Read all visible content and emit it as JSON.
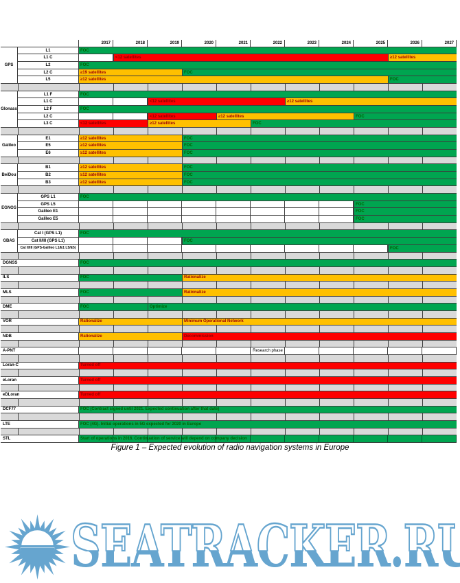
{
  "colors": {
    "green": "#00a550",
    "gold": "#ffc000",
    "red": "#fe0000",
    "sep_gray": "#d9d9d9",
    "border": "#3c3c3c",
    "text_on_green": "#006100",
    "text_on_gold": "#9c0006",
    "text_on_red": "#8b0000",
    "watermark_blue": "#66a5cf"
  },
  "watermark": {
    "text": "SEATRACKER.RU"
  },
  "chart_data": {
    "type": "gantt",
    "title": "Figure 1 – Expected evolution of radio navigation systems in Europe",
    "years": [
      "2017",
      "2018",
      "2019",
      "2020",
      "2021",
      "2022",
      "2023",
      "2024",
      "2025",
      "2026",
      "2027"
    ],
    "groups": [
      {
        "system": "GPS",
        "rows": [
          {
            "signal": "L1",
            "segments": [
              {
                "from_year": 2017,
                "to_year": 2027,
                "color": "green",
                "label": "FOC"
              }
            ]
          },
          {
            "signal": "L1 C",
            "segments": [
              {
                "from_year": 2017,
                "to_year": 2017,
                "color": "white",
                "label": ""
              },
              {
                "from_year": 2018,
                "to_year": 2025,
                "color": "red",
                "label": "<12 satellites"
              },
              {
                "from_year": 2026,
                "to_year": 2027,
                "color": "gold",
                "label": "≥12 satellites"
              }
            ]
          },
          {
            "signal": "L2",
            "segments": [
              {
                "from_year": 2017,
                "to_year": 2027,
                "color": "green",
                "label": "FOC"
              }
            ]
          },
          {
            "signal": "L2 C",
            "segments": [
              {
                "from_year": 2017,
                "to_year": 2019,
                "color": "gold",
                "label": "≥19 satellites"
              },
              {
                "from_year": 2020,
                "to_year": 2027,
                "color": "green",
                "label": "FOC"
              }
            ]
          },
          {
            "signal": "L5",
            "segments": [
              {
                "from_year": 2017,
                "to_year": 2025,
                "color": "gold",
                "label": "≥12 satellites"
              },
              {
                "from_year": 2026,
                "to_year": 2027,
                "color": "green",
                "label": "FOC"
              }
            ]
          }
        ]
      },
      {
        "system": "Glonass",
        "rows": [
          {
            "signal": "L1 F",
            "segments": [
              {
                "from_year": 2017,
                "to_year": 2027,
                "color": "green",
                "label": "FOC"
              }
            ]
          },
          {
            "signal": "L1 C",
            "segments": [
              {
                "from_year": 2017,
                "to_year": 2018,
                "color": "white",
                "label": ""
              },
              {
                "from_year": 2019,
                "to_year": 2022,
                "color": "red",
                "label": "<12 satellites"
              },
              {
                "from_year": 2023,
                "to_year": 2027,
                "color": "gold",
                "label": "≥12 satellites"
              }
            ]
          },
          {
            "signal": "L2 F",
            "segments": [
              {
                "from_year": 2017,
                "to_year": 2027,
                "color": "green",
                "label": "FOC"
              }
            ]
          },
          {
            "signal": "L2 C",
            "segments": [
              {
                "from_year": 2017,
                "to_year": 2018,
                "color": "white",
                "label": ""
              },
              {
                "from_year": 2019,
                "to_year": 2020,
                "color": "red",
                "label": "<12 satellites"
              },
              {
                "from_year": 2021,
                "to_year": 2024,
                "color": "gold",
                "label": "≥12 satellites"
              },
              {
                "from_year": 2025,
                "to_year": 2027,
                "color": "green",
                "label": "FOC"
              }
            ]
          },
          {
            "signal": "L3 C",
            "segments": [
              {
                "from_year": 2017,
                "to_year": 2018,
                "color": "red",
                "label": "<12 satellites"
              },
              {
                "from_year": 2019,
                "to_year": 2021,
                "color": "gold",
                "label": "≥12 satellites"
              },
              {
                "from_year": 2022,
                "to_year": 2027,
                "color": "green",
                "label": "FOC"
              }
            ]
          }
        ]
      },
      {
        "system": "Galileo",
        "rows": [
          {
            "signal": "E1",
            "segments": [
              {
                "from_year": 2017,
                "to_year": 2019,
                "color": "gold",
                "label": "≥12 satellites"
              },
              {
                "from_year": 2020,
                "to_year": 2027,
                "color": "green",
                "label": "FOC"
              }
            ]
          },
          {
            "signal": "E5",
            "segments": [
              {
                "from_year": 2017,
                "to_year": 2019,
                "color": "gold",
                "label": "≥12 satellites"
              },
              {
                "from_year": 2020,
                "to_year": 2027,
                "color": "green",
                "label": "FOC"
              }
            ]
          },
          {
            "signal": "E6",
            "segments": [
              {
                "from_year": 2017,
                "to_year": 2019,
                "color": "gold",
                "label": "≥12 satellites"
              },
              {
                "from_year": 2020,
                "to_year": 2027,
                "color": "green",
                "label": "FOC"
              }
            ]
          }
        ]
      },
      {
        "system": "BeiDou",
        "rows": [
          {
            "signal": "B1",
            "segments": [
              {
                "from_year": 2017,
                "to_year": 2019,
                "color": "gold",
                "label": "≥12 satellites"
              },
              {
                "from_year": 2020,
                "to_year": 2027,
                "color": "green",
                "label": "FOC"
              }
            ]
          },
          {
            "signal": "B2",
            "segments": [
              {
                "from_year": 2017,
                "to_year": 2019,
                "color": "gold",
                "label": "≥12 satellites"
              },
              {
                "from_year": 2020,
                "to_year": 2027,
                "color": "green",
                "label": "FOC"
              }
            ]
          },
          {
            "signal": "B3",
            "segments": [
              {
                "from_year": 2017,
                "to_year": 2019,
                "color": "gold",
                "label": "≥12 satellites"
              },
              {
                "from_year": 2020,
                "to_year": 2027,
                "color": "green",
                "label": "FOC"
              }
            ]
          }
        ]
      },
      {
        "system": "EGNOS",
        "rows": [
          {
            "signal": "GPS L1",
            "segments": [
              {
                "from_year": 2017,
                "to_year": 2027,
                "color": "green",
                "label": "FOC"
              }
            ]
          },
          {
            "signal": "GPS L5",
            "segments": [
              {
                "from_year": 2017,
                "to_year": 2024,
                "color": "white",
                "label": ""
              },
              {
                "from_year": 2025,
                "to_year": 2027,
                "color": "green",
                "label": "FOC"
              }
            ]
          },
          {
            "signal": "Galileo E1",
            "segments": [
              {
                "from_year": 2017,
                "to_year": 2024,
                "color": "white",
                "label": ""
              },
              {
                "from_year": 2025,
                "to_year": 2027,
                "color": "green",
                "label": "FOC"
              }
            ]
          },
          {
            "signal": "Galileo E5",
            "segments": [
              {
                "from_year": 2017,
                "to_year": 2024,
                "color": "white",
                "label": ""
              },
              {
                "from_year": 2025,
                "to_year": 2027,
                "color": "green",
                "label": "FOC"
              }
            ]
          }
        ]
      },
      {
        "system": "GBAS",
        "rows": [
          {
            "signal": "Cat I (GPS L1)",
            "segments": [
              {
                "from_year": 2017,
                "to_year": 2027,
                "color": "green",
                "label": "FOC"
              }
            ]
          },
          {
            "signal": "Cat II/III (GPS L1)",
            "segments": [
              {
                "from_year": 2017,
                "to_year": 2019,
                "color": "white",
                "label": ""
              },
              {
                "from_year": 2020,
                "to_year": 2027,
                "color": "green",
                "label": "FOC"
              }
            ]
          },
          {
            "signal": "Cat II/III (GPS-Galileo L1/E1 L5/E5)",
            "segments": [
              {
                "from_year": 2017,
                "to_year": 2025,
                "color": "white",
                "label": ""
              },
              {
                "from_year": 2026,
                "to_year": 2027,
                "color": "green",
                "label": "FOC"
              }
            ]
          }
        ]
      },
      {
        "system": "DGNSS",
        "rows": [
          {
            "signal": "",
            "segments": [
              {
                "from_year": 2017,
                "to_year": 2027,
                "color": "green",
                "label": "FOC"
              }
            ]
          }
        ]
      },
      {
        "system": "ILS",
        "rows": [
          {
            "signal": "",
            "segments": [
              {
                "from_year": 2017,
                "to_year": 2019,
                "color": "green",
                "label": "FOC"
              },
              {
                "from_year": 2020,
                "to_year": 2027,
                "color": "gold",
                "label": "Rationalize"
              }
            ]
          }
        ]
      },
      {
        "system": "MLS",
        "rows": [
          {
            "signal": "",
            "segments": [
              {
                "from_year": 2017,
                "to_year": 2019,
                "color": "green",
                "label": "FOC"
              },
              {
                "from_year": 2020,
                "to_year": 2027,
                "color": "gold",
                "label": "Rationalize"
              }
            ]
          }
        ]
      },
      {
        "system": "DME",
        "rows": [
          {
            "signal": "",
            "segments": [
              {
                "from_year": 2017,
                "to_year": 2018,
                "color": "green",
                "label": "FOC"
              },
              {
                "from_year": 2019,
                "to_year": 2027,
                "color": "green",
                "label": "Optimize"
              }
            ]
          }
        ]
      },
      {
        "system": "VOR",
        "rows": [
          {
            "signal": "",
            "segments": [
              {
                "from_year": 2017,
                "to_year": 2019,
                "color": "gold",
                "label": "Rationalize"
              },
              {
                "from_year": 2020,
                "to_year": 2027,
                "color": "gold",
                "label": "Minimum Operational Network"
              }
            ]
          }
        ]
      },
      {
        "system": "NDB",
        "rows": [
          {
            "signal": "",
            "segments": [
              {
                "from_year": 2017,
                "to_year": 2019,
                "color": "gold",
                "label": "Rationalize"
              },
              {
                "from_year": 2020,
                "to_year": 2027,
                "color": "red",
                "label": "Decommission"
              }
            ]
          }
        ]
      },
      {
        "system": "A-PNT",
        "rows": [
          {
            "signal": "",
            "segments": [
              {
                "from_year": 2017,
                "to_year": 2027,
                "color": "white",
                "label": "Research phase",
                "align": "center"
              }
            ]
          }
        ]
      },
      {
        "system": "Loran-C",
        "rows": [
          {
            "signal": "",
            "segments": [
              {
                "from_year": 2017,
                "to_year": 2027,
                "color": "red",
                "label": "Turned off"
              }
            ]
          }
        ]
      },
      {
        "system": "eLoran",
        "rows": [
          {
            "signal": "",
            "segments": [
              {
                "from_year": 2017,
                "to_year": 2027,
                "color": "red",
                "label": "Turned off"
              }
            ]
          }
        ]
      },
      {
        "system": "eDLoran",
        "rows": [
          {
            "signal": "",
            "segments": [
              {
                "from_year": 2017,
                "to_year": 2027,
                "color": "red",
                "label": "Turned off"
              }
            ]
          }
        ]
      },
      {
        "system": "DCF77",
        "rows": [
          {
            "signal": "",
            "segments": [
              {
                "from_year": 2017,
                "to_year": 2027,
                "color": "green",
                "label": "FOC (Contract signed until 2021. Expected continuation after that date)"
              }
            ]
          }
        ]
      },
      {
        "system": "LTE",
        "rows": [
          {
            "signal": "",
            "segments": [
              {
                "from_year": 2017,
                "to_year": 2027,
                "color": "green",
                "label": "FOC (4G). Initial operations in 5G expected for 2020 in Europe"
              }
            ]
          }
        ]
      },
      {
        "system": "STL",
        "rows": [
          {
            "signal": "",
            "segments": [
              {
                "from_year": 2017,
                "to_year": 2027,
                "color": "green",
                "label": "Start of operations in 2016. Continuation of service will depend on company decision",
                "grid": true
              }
            ]
          }
        ]
      }
    ]
  }
}
